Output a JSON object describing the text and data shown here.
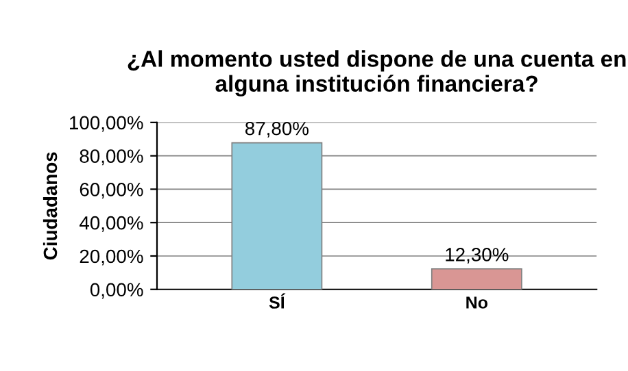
{
  "chart_data": {
    "type": "bar",
    "title": "¿Al momento usted dispone de una cuenta en alguna institución financiera?",
    "ylabel": "Ciudadanos",
    "categories": [
      "SÍ",
      "No"
    ],
    "values": [
      87.8,
      12.3
    ],
    "colors": [
      "#93cddd",
      "#d99694"
    ],
    "value_labels": [
      "87,80%",
      "12,30%"
    ],
    "ylim": [
      0,
      100
    ],
    "yticks": [
      {
        "value": 0,
        "label": "0,00%"
      },
      {
        "value": 20,
        "label": "20,00%"
      },
      {
        "value": 40,
        "label": "40,00%"
      },
      {
        "value": 60,
        "label": "60,00%"
      },
      {
        "value": 80,
        "label": "80,00%"
      },
      {
        "value": 100,
        "label": "100,00%"
      }
    ],
    "grid": "y",
    "legend": false
  }
}
